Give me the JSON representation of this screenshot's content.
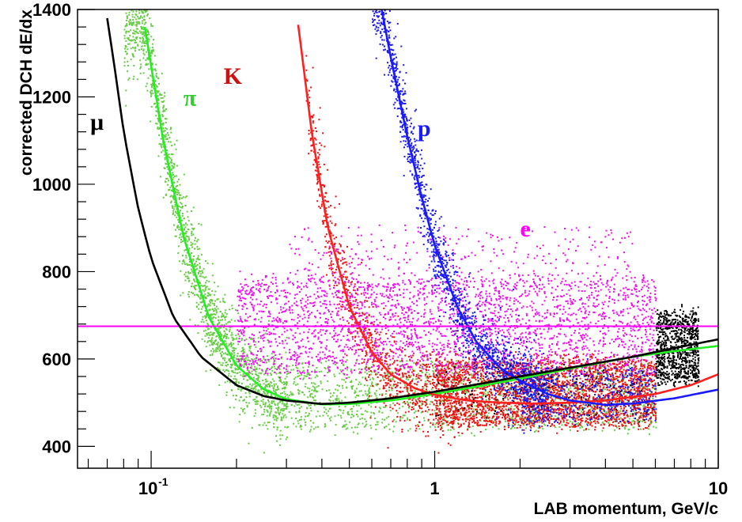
{
  "chart_data": {
    "type": "scatter",
    "title": "",
    "xlabel": "LAB momentum, GeV/c",
    "ylabel": "corrected DCH dE/dx",
    "x_scale": "log",
    "xlim": [
      0.055,
      10
    ],
    "ylim": [
      350,
      1400
    ],
    "grid": false,
    "legend": "none",
    "x_ticks": [
      {
        "value": 0.1,
        "label": "10",
        "exponent": "-1"
      },
      {
        "value": 1,
        "label": "1",
        "exponent": ""
      },
      {
        "value": 10,
        "label": "10",
        "exponent": ""
      }
    ],
    "y_ticks": [
      {
        "value": 400,
        "label": "400"
      },
      {
        "value": 600,
        "label": "600"
      },
      {
        "value": 800,
        "label": "800"
      },
      {
        "value": 1000,
        "label": "1000"
      },
      {
        "value": 1200,
        "label": "1200"
      },
      {
        "value": 1400,
        "label": "1400"
      }
    ],
    "series": [
      {
        "name": "π",
        "color": "#22ee22",
        "point_color": "#66cc44",
        "label_pos": {
          "x": 0.13,
          "y": 1180
        },
        "curve": {
          "x": [
            0.095,
            0.11,
            0.13,
            0.16,
            0.2,
            0.25,
            0.3,
            0.4,
            0.5,
            0.7,
            1,
            1.5,
            2,
            3,
            5,
            7,
            10
          ],
          "y": [
            1360,
            1105,
            880,
            695,
            585,
            530,
            508,
            496,
            497,
            505,
            520,
            540,
            555,
            578,
            605,
            618,
            630
          ]
        },
        "bands": [
          {
            "x": [
              0.08,
              0.3
            ],
            "y_center": "curve",
            "spread": 55,
            "count": 1800
          },
          {
            "x": [
              0.3,
              6
            ],
            "y": [
              440,
              590
            ],
            "count": 1400
          }
        ]
      },
      {
        "name": "K",
        "color": "#ff2020",
        "point_color": "#ee1111",
        "label_pos": {
          "x": 0.18,
          "y": 1230
        },
        "curve": {
          "x": [
            0.33,
            0.37,
            0.42,
            0.5,
            0.6,
            0.7,
            0.85,
            1,
            1.3,
            1.7,
            2.2,
            3,
            4,
            6,
            8,
            10
          ],
          "y": [
            1365,
            1110,
            900,
            720,
            615,
            565,
            533,
            518,
            505,
            500,
            498,
            500,
            505,
            520,
            540,
            565
          ]
        },
        "bands": [
          {
            "x": [
              0.35,
              1.2
            ],
            "y_center": "curve",
            "spread": 55,
            "count": 900
          },
          {
            "x": [
              1,
              6
            ],
            "y": [
              450,
              600
            ],
            "count": 2800
          }
        ]
      },
      {
        "name": "p",
        "color": "#1a1aff",
        "point_color": "#1a1aee",
        "label_pos": {
          "x": 0.87,
          "y": 1110
        },
        "curve": {
          "x": [
            0.65,
            0.7,
            0.8,
            0.9,
            1,
            1.2,
            1.4,
            1.7,
            2,
            2.5,
            3,
            4,
            5,
            7,
            10
          ],
          "y": [
            1400,
            1290,
            1110,
            970,
            860,
            720,
            640,
            580,
            550,
            520,
            505,
            495,
            498,
            510,
            530
          ]
        },
        "bands": [
          {
            "x": [
              0.6,
              2.5
            ],
            "y_center": "curve",
            "spread": 45,
            "count": 1500
          },
          {
            "x": [
              2,
              6
            ],
            "y": [
              460,
              580
            ],
            "count": 500
          }
        ]
      },
      {
        "name": "e",
        "color": "#ff00ff",
        "point_color": "#ee11ee",
        "label_pos": {
          "x": 2.0,
          "y": 880
        },
        "curve": {
          "x": [
            0.055,
            10
          ],
          "y": [
            675,
            675
          ]
        },
        "bands": [
          {
            "x": [
              0.2,
              6
            ],
            "y": [
              570,
              790
            ],
            "count": 2800
          },
          {
            "x": [
              0.3,
              5
            ],
            "y": [
              790,
              900
            ],
            "count": 250
          }
        ]
      },
      {
        "name": "μ",
        "color": "#000000",
        "point_color": "#000000",
        "label_pos": {
          "x": 0.061,
          "y": 1125
        },
        "curve": {
          "x": [
            0.07,
            0.075,
            0.08,
            0.09,
            0.1,
            0.12,
            0.15,
            0.2,
            0.25,
            0.3,
            0.4,
            0.5,
            0.7,
            1,
            1.5,
            2,
            3,
            5,
            7,
            10
          ],
          "y": [
            1380,
            1250,
            1120,
            945,
            830,
            695,
            605,
            540,
            515,
            505,
            497,
            500,
            510,
            525,
            545,
            560,
            580,
            605,
            625,
            645
          ]
        },
        "bands": [
          {
            "x": [
              6,
              8.5
            ],
            "y": [
              550,
              710
            ],
            "count": 900
          },
          {
            "x": [
              1,
              6
            ],
            "y": [
              470,
              590
            ],
            "count": 120
          }
        ]
      }
    ]
  }
}
